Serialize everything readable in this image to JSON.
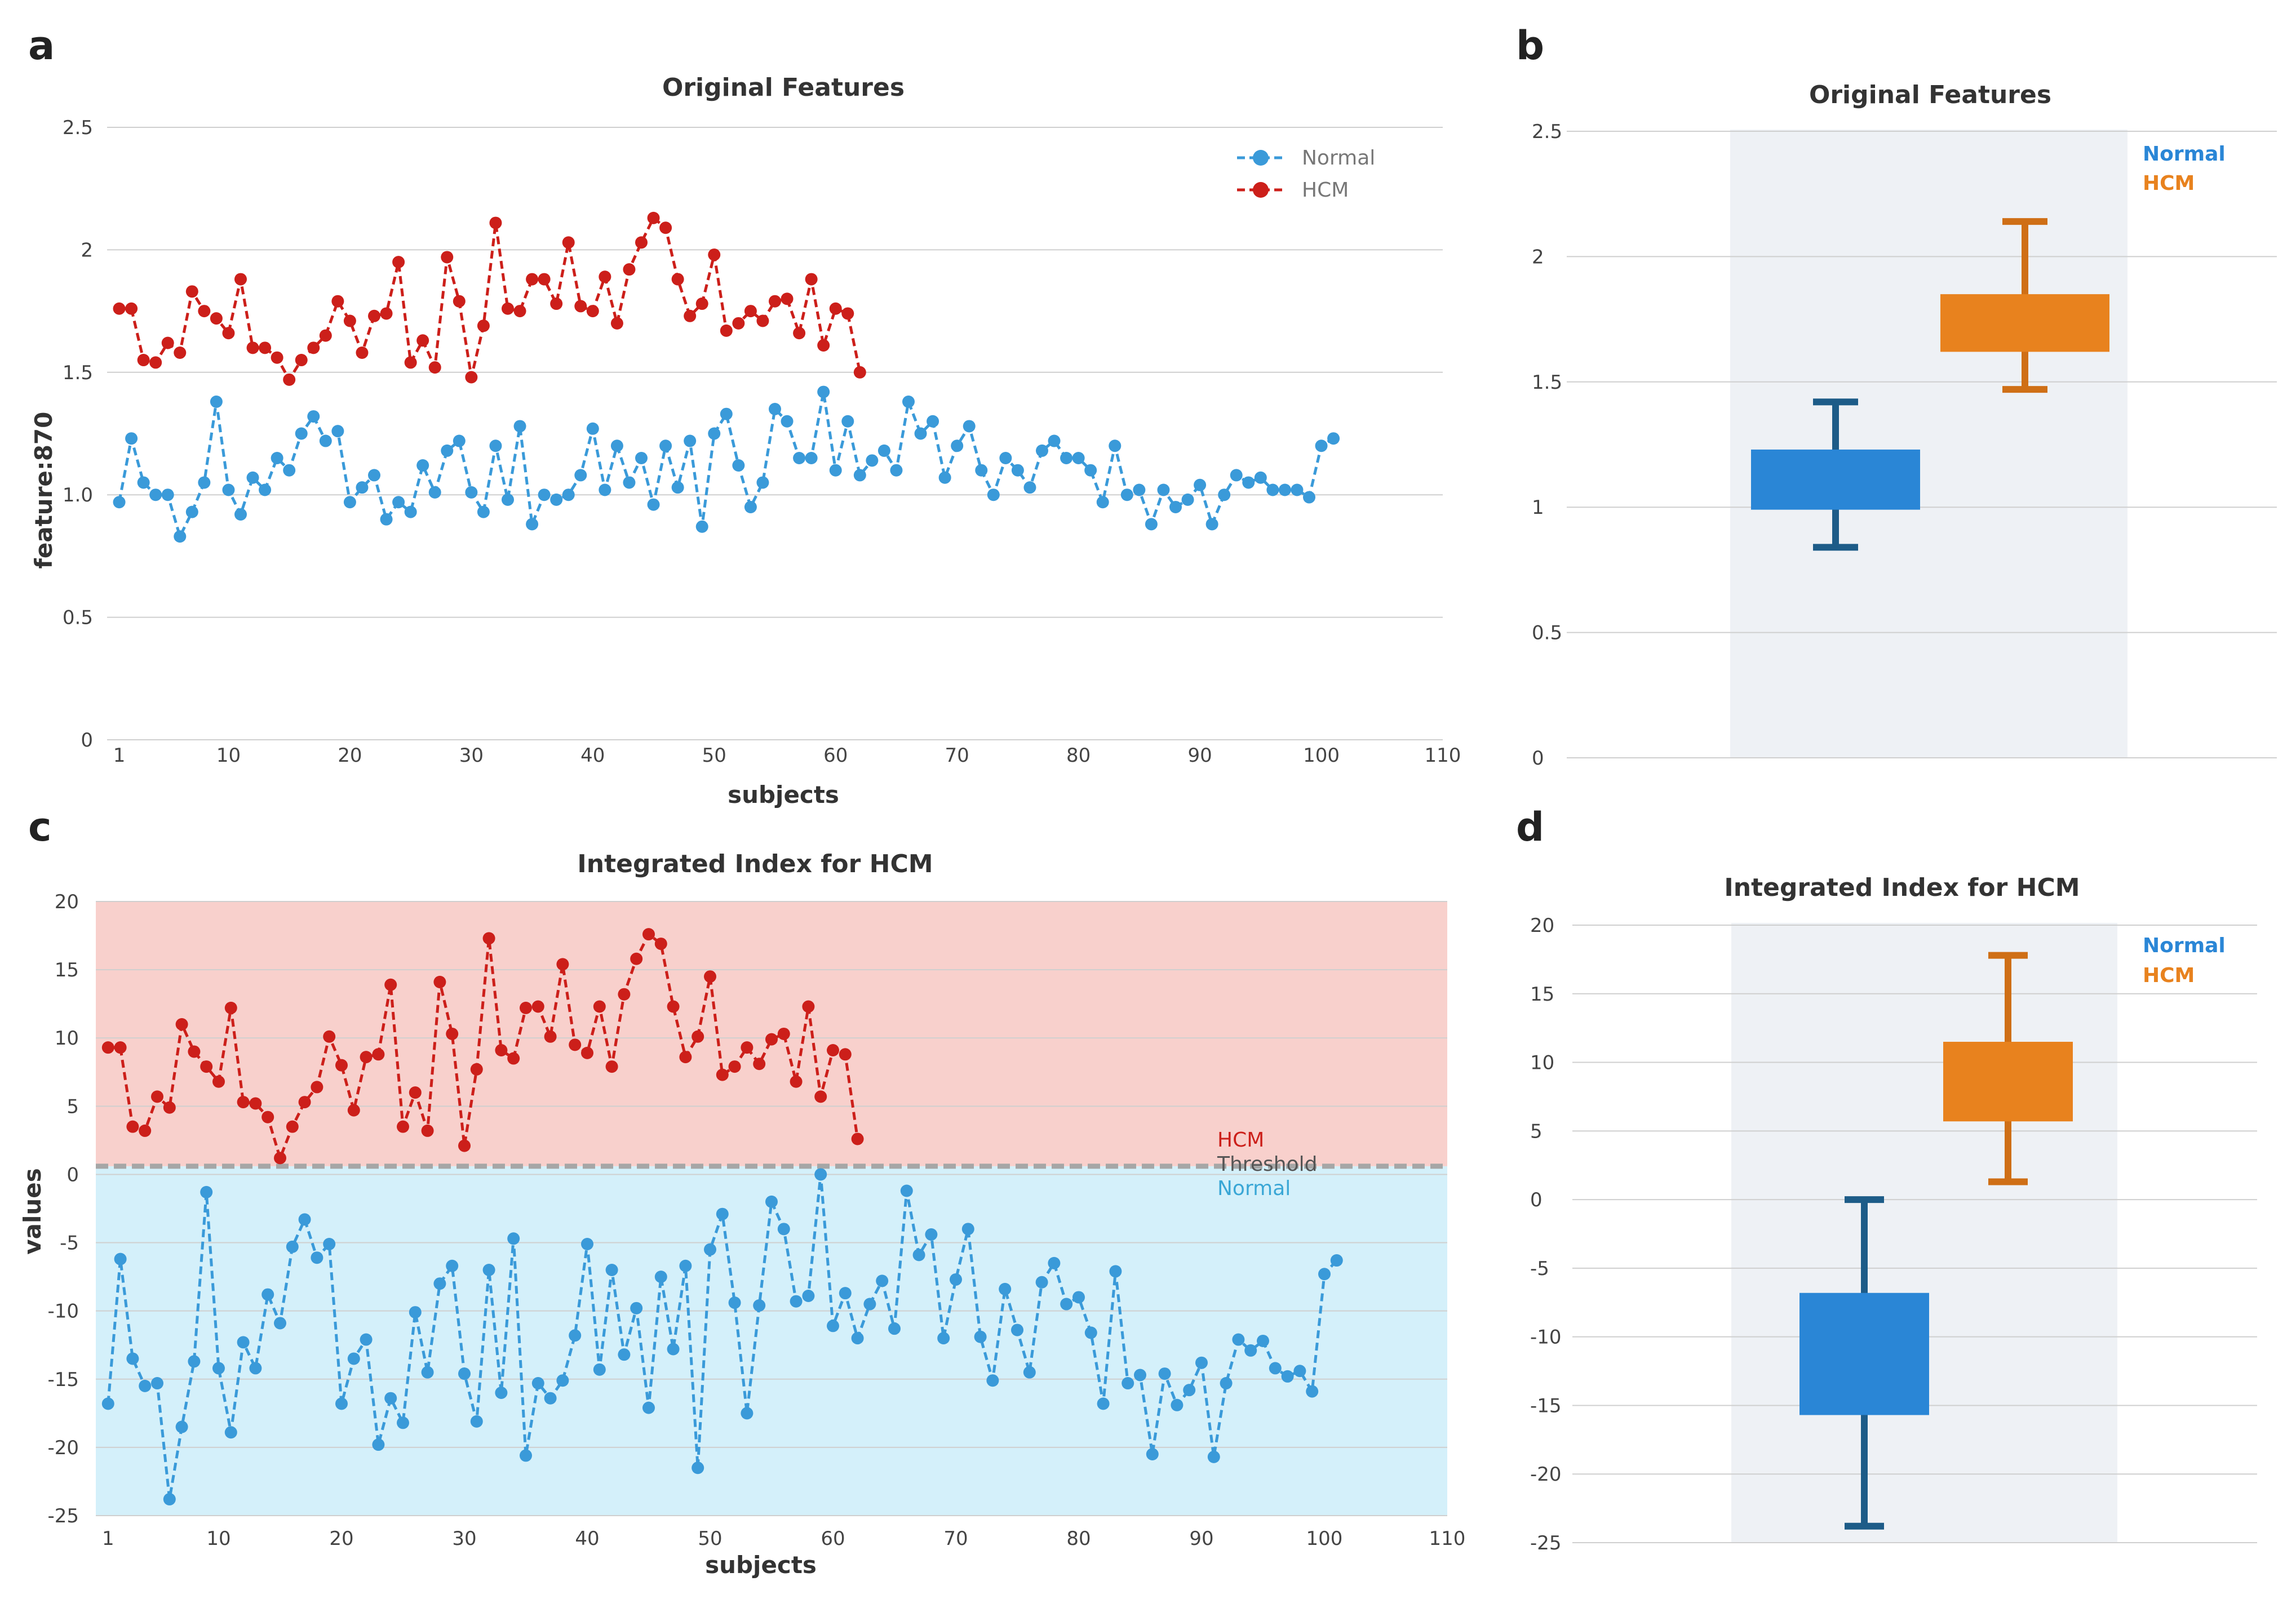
{
  "panels": {
    "a": "a",
    "b": "b",
    "c": "c",
    "d": "d"
  },
  "colors": {
    "normal_line": "#3a9ad9",
    "hcm_line": "#cc1f1a",
    "normal_box": "#2a86d6",
    "normal_whisker": "#1d5c88",
    "hcm_box": "#e8821e",
    "hcm_whisker": "#cf6f16",
    "hcm_region": "#f8d0cc",
    "normal_region": "#d4f0fa",
    "threshold": "#a6a6a6",
    "box_band": "#eef1f5"
  },
  "chart_data": [
    {
      "id": "a",
      "type": "line",
      "title": "Original Features",
      "xlabel": "subjects",
      "ylabel": "feature:870",
      "xlim": [
        0,
        110
      ],
      "ylim": [
        0,
        2.5
      ],
      "xticks": [
        1,
        10,
        20,
        30,
        40,
        50,
        60,
        70,
        80,
        90,
        100,
        110
      ],
      "yticks": [
        0,
        0.5,
        1.0,
        1.5,
        2,
        2.5
      ],
      "ytick_labels": [
        "0",
        "0.5",
        "1.0",
        "1.5",
        "2",
        "2.5"
      ],
      "grid": true,
      "legend": "top-right",
      "series": [
        {
          "name": "Normal",
          "x_start": 1,
          "values": [
            0.97,
            1.23,
            1.05,
            1.0,
            1.0,
            0.83,
            0.93,
            1.05,
            1.38,
            1.02,
            0.92,
            1.07,
            1.02,
            1.15,
            1.1,
            1.25,
            1.32,
            1.22,
            1.26,
            0.97,
            1.03,
            1.08,
            0.9,
            0.97,
            0.93,
            1.12,
            1.01,
            1.18,
            1.22,
            1.01,
            0.93,
            1.2,
            0.98,
            1.28,
            0.88,
            1.0,
            0.98,
            1.0,
            1.08,
            1.27,
            1.02,
            1.2,
            1.05,
            1.15,
            0.96,
            1.2,
            1.03,
            1.22,
            0.87,
            1.25,
            1.33,
            1.12,
            0.95,
            1.05,
            1.35,
            1.3,
            1.15,
            1.15,
            1.42,
            1.1,
            1.3,
            1.08,
            1.14,
            1.18,
            1.1,
            1.38,
            1.25,
            1.3,
            1.07,
            1.2,
            1.28,
            1.1,
            1.0,
            1.15,
            1.1,
            1.03,
            1.18,
            1.22,
            1.15,
            1.15,
            1.1,
            0.97,
            1.2,
            1.0,
            1.02,
            0.88,
            1.02,
            0.95,
            0.98,
            1.04,
            0.88,
            1.0,
            1.08,
            1.05,
            1.07,
            1.02,
            1.02,
            1.02,
            0.99,
            1.2,
            1.23
          ]
        },
        {
          "name": "HCM",
          "x_start": 1,
          "values": [
            1.76,
            1.76,
            1.55,
            1.54,
            1.62,
            1.58,
            1.83,
            1.75,
            1.72,
            1.66,
            1.88,
            1.6,
            1.6,
            1.56,
            1.47,
            1.55,
            1.6,
            1.65,
            1.79,
            1.71,
            1.58,
            1.73,
            1.74,
            1.95,
            1.54,
            1.63,
            1.52,
            1.97,
            1.79,
            1.48,
            1.69,
            2.11,
            1.76,
            1.75,
            1.88,
            1.88,
            1.78,
            2.03,
            1.77,
            1.75,
            1.89,
            1.7,
            1.92,
            2.03,
            2.13,
            2.09,
            1.88,
            1.73,
            1.78,
            1.98,
            1.67,
            1.7,
            1.75,
            1.71,
            1.79,
            1.8,
            1.66,
            1.88,
            1.61,
            1.76,
            1.74,
            1.5
          ]
        }
      ]
    },
    {
      "id": "b",
      "type": "box",
      "title": "Original Features",
      "ylim": [
        0,
        2.5
      ],
      "yticks": [
        0,
        0.5,
        1,
        1.5,
        2,
        2.5
      ],
      "ytick_labels": [
        "0",
        "0.5",
        "1",
        "1.5",
        "2",
        "2.5"
      ],
      "grid": true,
      "legend": "top-right",
      "series": [
        {
          "name": "Normal",
          "min": 0.84,
          "q1": 0.99,
          "q3": 1.23,
          "max": 1.42
        },
        {
          "name": "HCM",
          "min": 1.47,
          "q1": 1.62,
          "q3": 1.85,
          "max": 2.14
        }
      ]
    },
    {
      "id": "c",
      "type": "line",
      "title": "Integrated Index for HCM",
      "xlabel": "subjects",
      "ylabel": "values",
      "xlim": [
        0,
        110
      ],
      "ylim": [
        -25,
        20
      ],
      "xticks": [
        1,
        10,
        20,
        30,
        40,
        50,
        60,
        70,
        80,
        90,
        100,
        110
      ],
      "yticks": [
        -25,
        -20,
        -15,
        -10,
        -5,
        0,
        5,
        10,
        15,
        20
      ],
      "ytick_labels": [
        "-25",
        "-20",
        "-15",
        "-10",
        "-5",
        "0",
        "5",
        "10",
        "15",
        "20"
      ],
      "grid": true,
      "threshold": 0.6,
      "region_labels": {
        "hcm": "HCM",
        "threshold": "Threshold",
        "normal": "Normal"
      },
      "series": [
        {
          "name": "Normal",
          "x_start": 1,
          "values": [
            -16.8,
            -6.2,
            -13.5,
            -15.5,
            -15.3,
            -23.8,
            -18.5,
            -13.7,
            -1.3,
            -14.2,
            -18.9,
            -12.3,
            -14.2,
            -8.8,
            -10.9,
            -5.3,
            -3.3,
            -6.1,
            -5.1,
            -16.8,
            -13.5,
            -12.1,
            -19.8,
            -16.4,
            -18.2,
            -10.1,
            -14.5,
            -8.0,
            -6.7,
            -14.6,
            -18.1,
            -7.0,
            -16.0,
            -4.7,
            -20.6,
            -15.3,
            -16.4,
            -15.1,
            -11.8,
            -5.1,
            -14.3,
            -7.0,
            -13.2,
            -9.8,
            -17.1,
            -7.5,
            -12.8,
            -6.7,
            -21.5,
            -5.5,
            -2.9,
            -9.4,
            -17.5,
            -9.6,
            -2.0,
            -4.0,
            -9.3,
            -8.9,
            0.0,
            -11.1,
            -8.7,
            -12.0,
            -9.5,
            -7.8,
            -11.3,
            -1.2,
            -5.9,
            -4.4,
            -12.0,
            -7.7,
            -4.0,
            -11.9,
            -15.1,
            -8.4,
            -11.4,
            -14.5,
            -7.9,
            -6.5,
            -9.5,
            -9.0,
            -11.6,
            -16.8,
            -7.1,
            -15.3,
            -14.7,
            -20.5,
            -14.6,
            -16.9,
            -15.8,
            -13.8,
            -20.7,
            -15.3,
            -12.1,
            -12.9,
            -12.2,
            -14.2,
            -14.8,
            -14.4,
            -15.9,
            -7.3,
            -6.3
          ]
        },
        {
          "name": "HCM",
          "x_start": 1,
          "values": [
            9.3,
            9.3,
            3.5,
            3.2,
            5.7,
            4.9,
            11.0,
            9.0,
            7.9,
            6.8,
            12.2,
            5.3,
            5.2,
            4.2,
            1.2,
            3.5,
            5.3,
            6.4,
            10.1,
            8.0,
            4.7,
            8.6,
            8.8,
            13.9,
            3.5,
            6.0,
            3.2,
            14.1,
            10.3,
            2.1,
            7.7,
            17.3,
            9.1,
            8.5,
            12.2,
            12.3,
            10.1,
            15.4,
            9.5,
            8.9,
            12.3,
            7.9,
            13.2,
            15.8,
            17.6,
            16.9,
            12.3,
            8.6,
            10.1,
            14.5,
            7.3,
            7.9,
            9.3,
            8.1,
            9.9,
            10.3,
            6.8,
            12.3,
            5.7,
            9.1,
            8.8,
            2.6
          ]
        }
      ]
    },
    {
      "id": "d",
      "type": "box",
      "title": "Integrated Index for HCM",
      "ylim": [
        -25,
        20
      ],
      "yticks": [
        -25,
        -20,
        -15,
        -10,
        -5,
        0,
        5,
        10,
        15,
        20
      ],
      "ytick_labels": [
        "-25",
        "-20",
        "-15",
        "-10",
        "-5",
        "0",
        "5",
        "10",
        "15",
        "20"
      ],
      "grid": true,
      "legend": "top-right",
      "series": [
        {
          "name": "Normal",
          "min": -23.8,
          "q1": -15.7,
          "q3": -6.8,
          "max": 0.0
        },
        {
          "name": "HCM",
          "min": 1.3,
          "q1": 5.7,
          "q3": 11.5,
          "max": 17.8
        }
      ]
    }
  ]
}
